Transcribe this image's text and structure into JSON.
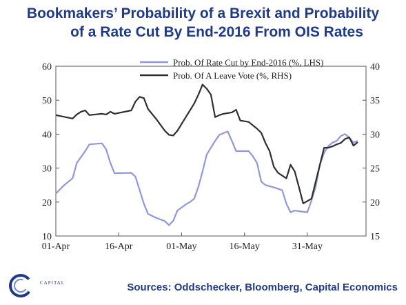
{
  "title_line1": "Bookmakers’ Probability of a Brexit and Probability",
  "title_line2": "of a Rate Cut By End-2016 From OIS Rates",
  "source": "Sources: Oddschecker, Bloomberg, Capital Economics",
  "logo_text": "CAPITAL",
  "chart_data": {
    "type": "line",
    "title": "Bookmakers’ Probability of a Brexit and Probability of a Rate Cut By End-2016 From OIS Rates",
    "x_ticks": [
      "01-Apr",
      "16-Apr",
      "01-May",
      "16-May",
      "31-May"
    ],
    "xlim": [
      "2016-04-01",
      "2016-06-14"
    ],
    "left_axis": {
      "ylim": [
        10,
        60
      ],
      "ticks": [
        10,
        20,
        30,
        40,
        50,
        60
      ]
    },
    "right_axis": {
      "ylim": [
        15,
        40
      ],
      "ticks": [
        15,
        20,
        25,
        30,
        35,
        40
      ]
    },
    "legend_position": "top-center",
    "series": [
      {
        "name": "Prob. Of Rate Cut by End-2016 (%, LHS)",
        "axis": "left",
        "color": "#8f96e0",
        "points": [
          [
            "2016-04-01",
            22.5
          ],
          [
            "2016-04-03",
            25.0
          ],
          [
            "2016-04-05",
            27.0
          ],
          [
            "2016-04-06",
            31.5
          ],
          [
            "2016-04-08",
            35.0
          ],
          [
            "2016-04-09",
            37.0
          ],
          [
            "2016-04-12",
            37.3
          ],
          [
            "2016-04-13",
            35.5
          ],
          [
            "2016-04-14",
            31.5
          ],
          [
            "2016-04-15",
            28.5
          ],
          [
            "2016-04-19",
            28.6
          ],
          [
            "2016-04-20",
            27.5
          ],
          [
            "2016-04-21",
            23.5
          ],
          [
            "2016-04-22",
            19.5
          ],
          [
            "2016-04-23",
            16.5
          ],
          [
            "2016-04-25",
            15.3
          ],
          [
            "2016-04-27",
            14.4
          ],
          [
            "2016-04-28",
            13.2
          ],
          [
            "2016-04-29",
            14.5
          ],
          [
            "2016-04-30",
            17.5
          ],
          [
            "2016-05-02",
            19.3
          ],
          [
            "2016-05-03",
            20.0
          ],
          [
            "2016-05-04",
            21.0
          ],
          [
            "2016-05-05",
            24.5
          ],
          [
            "2016-05-06",
            29.0
          ],
          [
            "2016-05-07",
            34.0
          ],
          [
            "2016-05-08",
            36.0
          ],
          [
            "2016-05-09",
            38.0
          ],
          [
            "2016-05-10",
            39.8
          ],
          [
            "2016-05-12",
            40.8
          ],
          [
            "2016-05-13",
            38.0
          ],
          [
            "2016-05-14",
            35.0
          ],
          [
            "2016-05-17",
            35.0
          ],
          [
            "2016-05-18",
            33.5
          ],
          [
            "2016-05-19",
            31.5
          ],
          [
            "2016-05-20",
            26.0
          ],
          [
            "2016-05-21",
            25.0
          ],
          [
            "2016-05-23",
            24.3
          ],
          [
            "2016-05-25",
            23.5
          ],
          [
            "2016-05-26",
            19.5
          ],
          [
            "2016-05-27",
            17.0
          ],
          [
            "2016-05-28",
            17.5
          ],
          [
            "2016-05-29",
            17.3
          ],
          [
            "2016-05-31",
            17.0
          ],
          [
            "2016-06-01",
            20.5
          ],
          [
            "2016-06-02",
            24.5
          ],
          [
            "2016-06-03",
            31.0
          ],
          [
            "2016-06-04",
            34.5
          ],
          [
            "2016-06-05",
            36.5
          ],
          [
            "2016-06-06",
            37.5
          ],
          [
            "2016-06-07",
            38.0
          ],
          [
            "2016-06-08",
            39.5
          ],
          [
            "2016-06-09",
            40.0
          ],
          [
            "2016-06-10",
            39.0
          ],
          [
            "2016-06-11",
            37.5
          ],
          [
            "2016-06-12",
            38.0
          ]
        ]
      },
      {
        "name": "Prob. Of A Leave Vote (%, RHS)",
        "axis": "right",
        "color": "#2b2f2e",
        "points": [
          [
            "2016-04-01",
            32.8
          ],
          [
            "2016-04-05",
            32.3
          ],
          [
            "2016-04-06",
            32.9
          ],
          [
            "2016-04-07",
            33.3
          ],
          [
            "2016-04-08",
            33.5
          ],
          [
            "2016-04-09",
            32.8
          ],
          [
            "2016-04-12",
            33.0
          ],
          [
            "2016-04-13",
            32.9
          ],
          [
            "2016-04-14",
            33.3
          ],
          [
            "2016-04-15",
            33.0
          ],
          [
            "2016-04-19",
            33.5
          ],
          [
            "2016-04-20",
            34.8
          ],
          [
            "2016-04-21",
            35.5
          ],
          [
            "2016-04-22",
            35.3
          ],
          [
            "2016-04-23",
            33.7
          ],
          [
            "2016-04-25",
            32.2
          ],
          [
            "2016-04-27",
            30.5
          ],
          [
            "2016-04-28",
            29.9
          ],
          [
            "2016-04-29",
            29.8
          ],
          [
            "2016-04-30",
            30.5
          ],
          [
            "2016-05-02",
            32.5
          ],
          [
            "2016-05-04",
            34.5
          ],
          [
            "2016-05-05",
            35.8
          ],
          [
            "2016-05-06",
            37.3
          ],
          [
            "2016-05-07",
            36.7
          ],
          [
            "2016-05-08",
            35.8
          ],
          [
            "2016-05-09",
            32.5
          ],
          [
            "2016-05-10",
            32.8
          ],
          [
            "2016-05-11",
            33.0
          ],
          [
            "2016-05-13",
            33.2
          ],
          [
            "2016-05-14",
            33.6
          ],
          [
            "2016-05-15",
            32.0
          ],
          [
            "2016-05-17",
            31.8
          ],
          [
            "2016-05-19",
            30.8
          ],
          [
            "2016-05-20",
            30.2
          ],
          [
            "2016-05-21",
            28.7
          ],
          [
            "2016-05-22",
            27.5
          ],
          [
            "2016-05-23",
            25.2
          ],
          [
            "2016-05-24",
            24.3
          ],
          [
            "2016-05-26",
            23.5
          ],
          [
            "2016-05-27",
            25.5
          ],
          [
            "2016-05-28",
            24.5
          ],
          [
            "2016-05-29",
            22.2
          ],
          [
            "2016-05-30",
            19.8
          ],
          [
            "2016-06-01",
            20.5
          ],
          [
            "2016-06-02",
            23.0
          ],
          [
            "2016-06-03",
            25.5
          ],
          [
            "2016-06-04",
            28.0
          ],
          [
            "2016-06-05",
            28.0
          ],
          [
            "2016-06-06",
            28.2
          ],
          [
            "2016-06-07",
            28.5
          ],
          [
            "2016-06-08",
            28.7
          ],
          [
            "2016-06-09",
            29.3
          ],
          [
            "2016-06-10",
            29.5
          ],
          [
            "2016-06-11",
            28.3
          ],
          [
            "2016-06-12",
            28.8
          ]
        ]
      }
    ]
  }
}
